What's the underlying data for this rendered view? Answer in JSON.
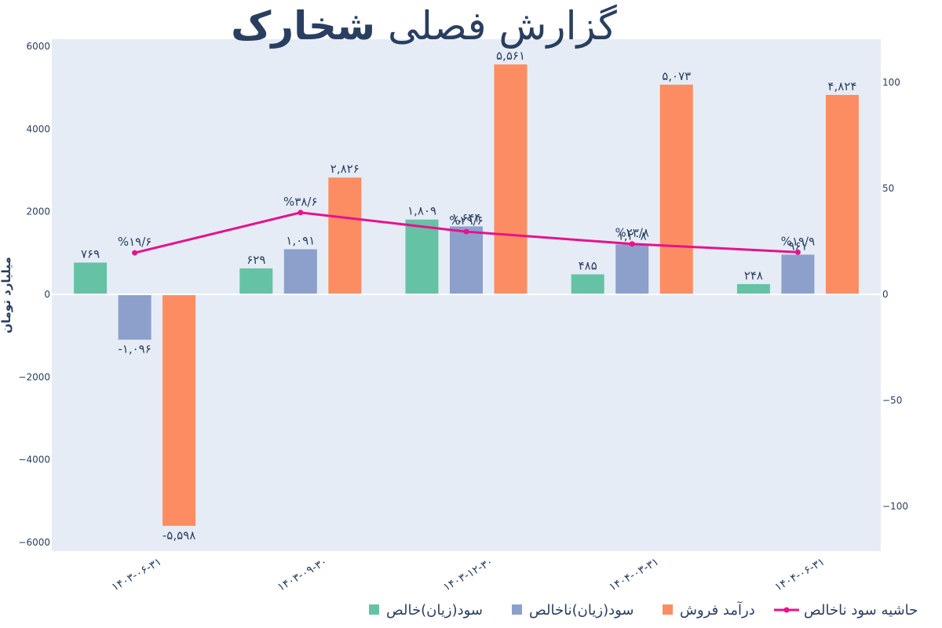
{
  "chart_data": {
    "type": "bar",
    "title_regular": "گزارش فصلی",
    "title_bold": "شخارک",
    "xlabel": "",
    "ylabel": "میلیارد تومان",
    "ylim": [
      -6200,
      6200
    ],
    "y2lim": [
      -120,
      120
    ],
    "yticks": [
      "−6000",
      "−4000",
      "−2000",
      "0",
      "2000",
      "4000",
      "6000"
    ],
    "y2ticks": [
      "−100",
      "−50",
      "0",
      "50",
      "100"
    ],
    "grid": false,
    "legend_position": "bottom",
    "categories": [
      "۱۴۰۳-۰۶-۳۱",
      "۱۴۰۳-۰۹-۳۰",
      "۱۴۰۳-۱۲-۳۰",
      "۱۴۰۴-۰۳-۳۱",
      "۱۴۰۴-۰۶-۳۱"
    ],
    "series": [
      {
        "name": "سود(زیان)خالص",
        "color": "#66c2a5",
        "values": [
          769,
          629,
          1809,
          485,
          248
        ],
        "labels": [
          "۷۶۹",
          "۶۲۹",
          "۱,۸۰۹",
          "۴۸۵",
          "۲۴۸"
        ]
      },
      {
        "name": "سود(زیان)ناخالص",
        "color": "#8da0cb",
        "values": [
          -1096,
          1091,
          1644,
          1208,
          961
        ],
        "labels": [
          "-۱,۰۹۶",
          "۱,۰۹۱",
          "۱,۶۴۴",
          "۱,۲۰۸",
          "۹۶۱"
        ]
      },
      {
        "name": "درآمد فروش",
        "color": "#fc8d62",
        "values": [
          -5598,
          2826,
          5561,
          5073,
          4824
        ],
        "labels": [
          "-۵,۵۹۸",
          "۲,۸۲۶",
          "۵,۵۶۱",
          "۵,۰۷۳",
          "۴,۸۲۴"
        ]
      }
    ],
    "line": {
      "name": "حاشیه سود ناخالص",
      "color": "#e7128c",
      "axis": "right",
      "values": [
        19.6,
        38.6,
        29.6,
        23.8,
        19.9
      ],
      "labels": [
        "%۱۹/۶",
        "%۳۸/۶",
        "%۲۹/۶",
        "%۲۳/۸",
        "%۱۹/۹"
      ]
    }
  }
}
